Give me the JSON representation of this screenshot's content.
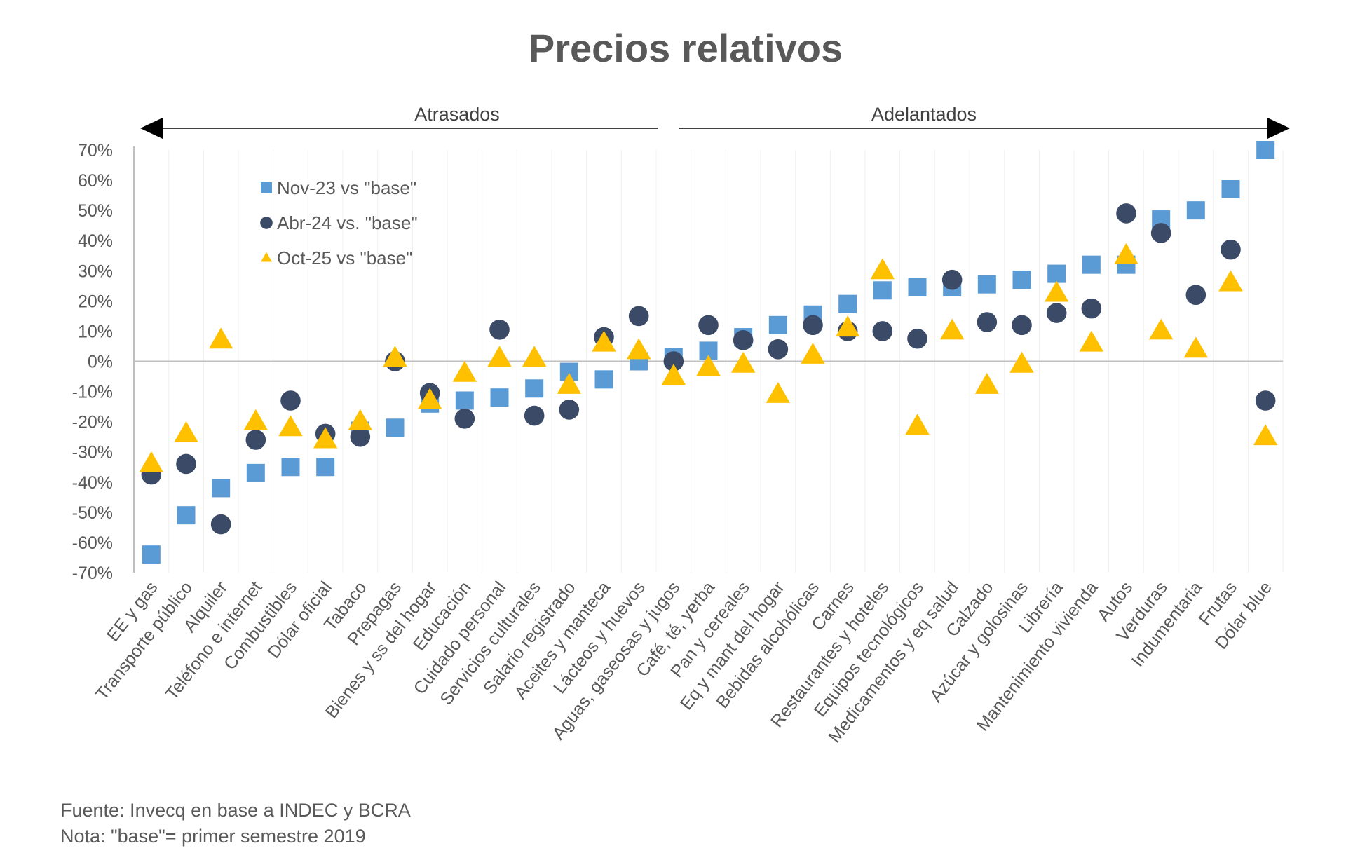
{
  "chart_data": {
    "type": "scatter",
    "title": "Precios relativos",
    "xlabel": "",
    "ylabel": "",
    "ylim": [
      -0.7,
      0.7
    ],
    "yticks": [
      "70%",
      "60%",
      "50%",
      "40%",
      "30%",
      "20%",
      "10%",
      "0%",
      "-10%",
      "-20%",
      "-30%",
      "-40%",
      "-50%",
      "-60%",
      "-70%"
    ],
    "grid": "vertical category lines",
    "legend_position": "top-left",
    "annotations": {
      "left_arrow": "Atrasados",
      "right_arrow": "Adelantados"
    },
    "categories": [
      "EE y gas",
      "Transporte público",
      "Alquiler",
      "Teléfono e internet",
      "Combustibles",
      "Dólar oficial",
      "Tabaco",
      "Prepagas",
      "Bienes y ss del hogar",
      "Educación",
      "Cuidado personal",
      "Servicios culturales",
      "Salario registrado",
      "Aceites y manteca",
      "Lácteos y huevos",
      "Aguas, gaseosas y jugos",
      "Café, té, yerba",
      "Pan y cereales",
      "Eq y mant del hogar",
      "Bebidas alcohólicas",
      "Carnes",
      "Restaurantes y hoteles",
      "Equipos tecnológicos",
      "Medicamentos y eq salud",
      "Calzado",
      "Azúcar y golosinas",
      "Librería",
      "Mantenimiento vivienda",
      "Autos",
      "Verduras",
      "Indumentaria",
      "Frutas",
      "Dólar blue"
    ],
    "series": [
      {
        "name": "Nov-23 vs \"base\"",
        "marker": "square",
        "color": "#5b9bd5",
        "values": [
          -0.64,
          -0.51,
          -0.42,
          -0.37,
          -0.35,
          -0.35,
          -0.23,
          -0.22,
          -0.14,
          -0.13,
          -0.12,
          -0.09,
          -0.035,
          -0.06,
          0.0,
          0.015,
          0.035,
          0.08,
          0.12,
          0.155,
          0.19,
          0.235,
          0.245,
          0.245,
          0.255,
          0.27,
          0.29,
          0.32,
          0.32,
          0.47,
          0.5,
          0.57,
          0.7
        ]
      },
      {
        "name": "Abr-24 vs. \"base\"",
        "marker": "circle",
        "color": "#3b4a67",
        "values": [
          -0.375,
          -0.34,
          -0.54,
          -0.26,
          -0.13,
          -0.24,
          -0.25,
          0.0,
          -0.105,
          -0.19,
          0.105,
          -0.18,
          -0.16,
          0.08,
          0.15,
          0.0,
          0.12,
          0.07,
          0.04,
          0.12,
          0.1,
          0.1,
          0.075,
          0.27,
          0.13,
          0.12,
          0.16,
          0.175,
          0.49,
          0.425,
          0.22,
          0.37,
          -0.13
        ]
      },
      {
        "name": "Oct-25 vs \"base\"",
        "marker": "triangle",
        "color": "#ffc000",
        "values": [
          -0.34,
          -0.24,
          0.07,
          -0.2,
          -0.22,
          -0.26,
          -0.2,
          0.01,
          -0.13,
          -0.04,
          0.01,
          0.01,
          -0.08,
          0.06,
          0.035,
          -0.05,
          -0.02,
          -0.01,
          -0.11,
          0.02,
          0.11,
          0.3,
          -0.215,
          0.1,
          -0.08,
          -0.01,
          0.225,
          0.06,
          0.35,
          0.1,
          0.04,
          0.26,
          -0.25
        ]
      }
    ]
  },
  "footer": {
    "source": "Fuente: Invecq en base a INDEC y BCRA",
    "note": "Nota: \"base\"= primer semestre 2019"
  }
}
